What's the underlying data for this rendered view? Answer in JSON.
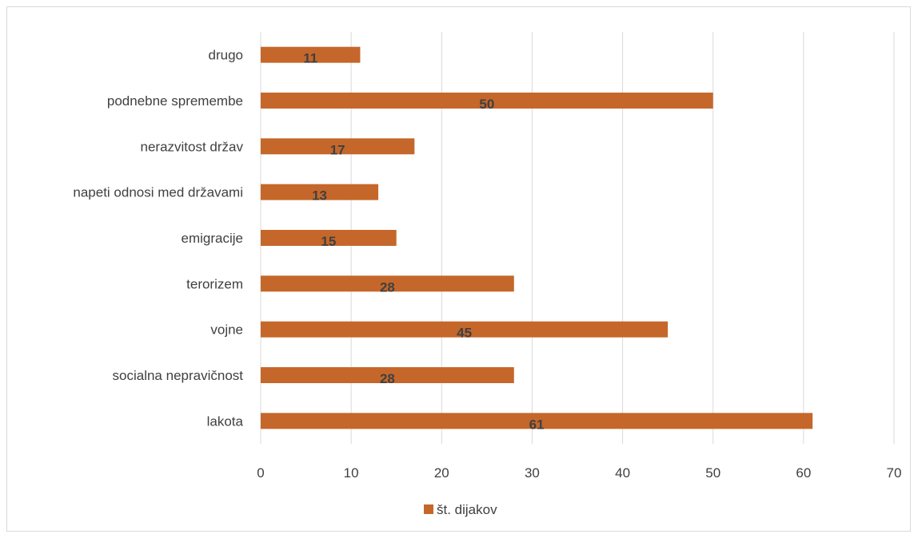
{
  "chart_data": {
    "type": "bar",
    "orientation": "horizontal",
    "categories": [
      "lakota",
      "socialna nepravičnost",
      "vojne",
      "terorizem",
      "emigracije",
      "napeti odnosi med državami",
      "nerazvitost držav",
      "podnebne spremembe",
      "drugo"
    ],
    "series": [
      {
        "name": "št. dijakov",
        "color": "#C5672A",
        "values": [
          61,
          28,
          45,
          28,
          15,
          13,
          17,
          50,
          11
        ]
      }
    ],
    "xlim": [
      0,
      70
    ],
    "xticks": [
      0,
      10,
      20,
      30,
      40,
      50,
      60,
      70
    ],
    "grid": true,
    "legend": "bottom",
    "data_labels": true,
    "title": "",
    "xlabel": "",
    "ylabel": ""
  }
}
